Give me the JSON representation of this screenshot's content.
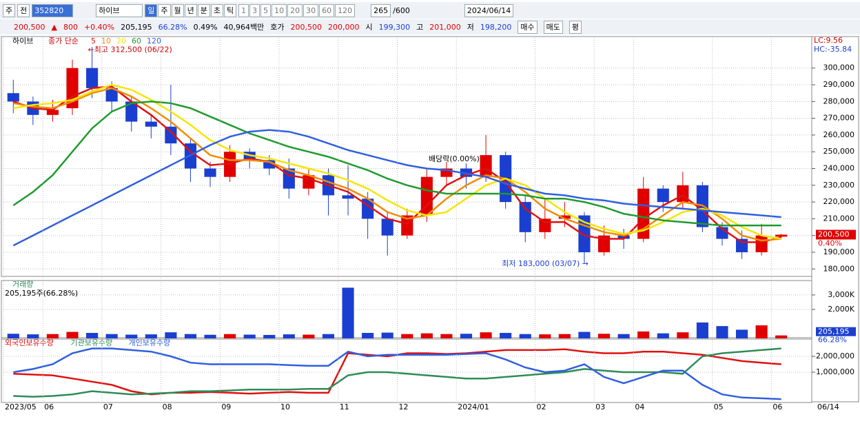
{
  "toolbar": {
    "period": "주",
    "prev": "전",
    "code": "352820",
    "name": "하이브",
    "intervals": [
      "일",
      "주",
      "월",
      "년",
      "분",
      "초",
      "틱"
    ],
    "minutes": [
      "1",
      "3",
      "5",
      "10",
      "20",
      "30",
      "60",
      "120"
    ],
    "count": "265",
    "max_count": "/600",
    "date": "2024/06/14"
  },
  "info_bar": {
    "price": "200,500",
    "arrow": "▲",
    "change": "800",
    "change_pct": "+0.40%",
    "volume": "205,195",
    "volume_ratio": "66.28%",
    "turnover": "0.49%",
    "amount": "40,964백만",
    "quote_label": "호가",
    "ask": "200,500",
    "bid": "200,000",
    "open_label": "시",
    "open": "199,300",
    "high_label": "고",
    "high": "201,000",
    "low_label": "저",
    "low": "198,200",
    "buy": "매수",
    "sell": "매도",
    "avg": "평"
  },
  "chart_data": [
    {
      "type": "candlestick",
      "title": "하이브",
      "legend_prefix": "종가 단순",
      "up_color": "#e00000",
      "down_color": "#1a3fd0",
      "open": [
        285000,
        280000,
        272000,
        276000,
        300000,
        288000,
        280000,
        268000,
        265000,
        255000,
        240000,
        235000,
        250000,
        245000,
        240000,
        228000,
        236000,
        224000,
        222000,
        210000,
        200000,
        212000,
        235000,
        240000,
        235000,
        248000,
        220000,
        202000,
        210000,
        212000,
        190000,
        200000,
        198000,
        228000,
        220000,
        230000,
        205000,
        198000,
        190000,
        199300
      ],
      "high": [
        293000,
        283000,
        281000,
        305000,
        312500,
        292000,
        283000,
        272000,
        290000,
        258000,
        244000,
        254000,
        252000,
        248000,
        246000,
        240000,
        240000,
        242000,
        226000,
        214000,
        216000,
        240000,
        244000,
        243000,
        260000,
        250000,
        224000,
        222000,
        220000,
        214000,
        206000,
        204000,
        235000,
        230000,
        238000,
        232000,
        208000,
        203000,
        207000,
        201000
      ],
      "low": [
        273000,
        266000,
        268000,
        272000,
        282000,
        274000,
        262000,
        258000,
        248000,
        232000,
        229000,
        232000,
        240000,
        236000,
        222000,
        224000,
        212000,
        212000,
        198000,
        188000,
        198000,
        208000,
        230000,
        228000,
        232000,
        216000,
        196000,
        198000,
        205000,
        183000,
        188000,
        192000,
        196000,
        214000,
        216000,
        202000,
        194000,
        186000,
        188000,
        198200
      ],
      "close": [
        280000,
        272000,
        275000,
        300000,
        288000,
        280000,
        268000,
        265000,
        255000,
        240000,
        235000,
        250000,
        245000,
        240000,
        228000,
        236000,
        224000,
        222000,
        210000,
        200000,
        212000,
        235000,
        240000,
        235000,
        248000,
        220000,
        202000,
        210000,
        212000,
        190000,
        200000,
        198000,
        228000,
        220000,
        230000,
        205000,
        198000,
        190000,
        200000,
        200500
      ],
      "series": [
        {
          "name": "5",
          "color": "#e01010",
          "values": [
            280000,
            276000,
            275000,
            283000,
            288000,
            289000,
            280000,
            272000,
            262000,
            250000,
            242000,
            243000,
            246000,
            244000,
            236000,
            234000,
            230000,
            226000,
            218000,
            210000,
            207000,
            218000,
            230000,
            236000,
            240000,
            232000,
            216000,
            208000,
            208000,
            200000,
            198000,
            198000,
            210000,
            218000,
            224000,
            215000,
            204000,
            196000,
            196000,
            199000
          ]
        },
        {
          "name": "10",
          "color": "#f08c00",
          "values": [
            279000,
            277000,
            276000,
            280000,
            285000,
            288000,
            283000,
            276000,
            268000,
            258000,
            248000,
            245000,
            245000,
            244000,
            239000,
            236000,
            232000,
            228000,
            222000,
            214000,
            210000,
            212000,
            222000,
            230000,
            236000,
            234000,
            226000,
            216000,
            210000,
            206000,
            202000,
            200000,
            204000,
            212000,
            220000,
            218000,
            210000,
            200000,
            197000,
            198000
          ]
        },
        {
          "name": "20",
          "color": "#f5e600",
          "values": [
            276000,
            278000,
            279000,
            281000,
            286000,
            290000,
            287000,
            281000,
            274000,
            266000,
            257000,
            251000,
            248000,
            246000,
            243000,
            240000,
            237000,
            233000,
            228000,
            221000,
            215000,
            212000,
            214000,
            222000,
            230000,
            234000,
            230000,
            222000,
            214000,
            208000,
            204000,
            201000,
            203000,
            208000,
            214000,
            216000,
            212000,
            205000,
            200000,
            198000
          ]
        },
        {
          "name": "60",
          "color": "#1e9a2e",
          "values": [
            218000,
            226000,
            236000,
            250000,
            264000,
            274000,
            279000,
            280000,
            279000,
            276000,
            271000,
            266000,
            261000,
            257000,
            253000,
            250000,
            247000,
            243000,
            239000,
            234000,
            230000,
            227000,
            225000,
            225000,
            225000,
            225000,
            224000,
            222000,
            222000,
            220000,
            217000,
            213000,
            211000,
            209000,
            208000,
            207000,
            206000,
            206000,
            206000,
            206000
          ]
        },
        {
          "name": "120",
          "color": "#2f5fe0",
          "values": [
            194000,
            200000,
            206000,
            212000,
            218000,
            224000,
            230000,
            236000,
            242000,
            248000,
            254000,
            259000,
            262000,
            263000,
            262000,
            259000,
            255000,
            251000,
            248000,
            245000,
            242000,
            240000,
            239000,
            237000,
            235000,
            231000,
            228000,
            225000,
            224000,
            222000,
            221000,
            219000,
            218000,
            217000,
            216000,
            215000,
            214000,
            213000,
            212000,
            211000
          ]
        }
      ],
      "ylim": [
        176000,
        318000
      ],
      "yticks": [
        {
          "value": 180000,
          "label": "180,000"
        },
        {
          "value": 190000,
          "label": "190,000"
        },
        {
          "value": 200000,
          "label": "200,000"
        },
        {
          "value": 210000,
          "label": "210,000"
        },
        {
          "value": 220000,
          "label": "220,000"
        },
        {
          "value": 230000,
          "label": "230,000"
        },
        {
          "value": 240000,
          "label": "240,000"
        },
        {
          "value": 250000,
          "label": "250,000"
        },
        {
          "value": 260000,
          "label": "260,000"
        },
        {
          "value": 270000,
          "label": "270,000"
        },
        {
          "value": 280000,
          "label": "280,000"
        },
        {
          "value": 290000,
          "label": "290,000"
        },
        {
          "value": 300000,
          "label": "300,000"
        }
      ],
      "grid": true,
      "annotations": [
        "←최고 312,500 (06/22)",
        "배당락(0.00%)",
        "최저 183,000 (03/07) →"
      ],
      "lc": "LC:9.56",
      "hc": "HC:-35.84",
      "last_price": {
        "value": 200500,
        "label": "200,500"
      },
      "last_change": "0.40%"
    },
    {
      "type": "bar",
      "title": "거래량",
      "subtitle": "205,195주(66.28%)",
      "up_color": "#e00000",
      "down_color": "#1a3fd0",
      "values": [
        320000,
        280000,
        300000,
        450000,
        380000,
        300000,
        260000,
        280000,
        420000,
        300000,
        250000,
        300000,
        260000,
        240000,
        280000,
        260000,
        300000,
        3500000,
        380000,
        400000,
        300000,
        350000,
        300000,
        320000,
        420000,
        380000,
        300000,
        280000,
        300000,
        450000,
        320000,
        300000,
        480000,
        350000,
        420000,
        1100000,
        850000,
        600000,
        900000,
        205195
      ],
      "ylim": [
        0,
        3900000
      ],
      "yticks": [
        {
          "value": 2000000,
          "label": "2,000K"
        },
        {
          "value": 3000000,
          "label": "3,000K"
        }
      ],
      "grid": true,
      "last_value": {
        "value": 205195,
        "label": "205,195"
      },
      "last_ratio": "66.28%"
    },
    {
      "type": "line",
      "categories": [
        "2023/05",
        null,
        "06",
        null,
        null,
        "07",
        null,
        null,
        "08",
        null,
        null,
        "09",
        null,
        null,
        "10",
        null,
        null,
        "11",
        null,
        null,
        "12",
        null,
        null,
        "2024/01",
        null,
        null,
        null,
        "02",
        null,
        null,
        "03",
        null,
        "04",
        null,
        null,
        null,
        "05",
        null,
        null,
        "06"
      ],
      "series": [
        {
          "name": "외국인보유수량",
          "color": "#e01010",
          "values": [
            900000,
            850000,
            800000,
            600000,
            400000,
            200000,
            -200000,
            -400000,
            -300000,
            -300000,
            -250000,
            -300000,
            -350000,
            -300000,
            -250000,
            -300000,
            -300000,
            2200000,
            2100000,
            2000000,
            2200000,
            2200000,
            2150000,
            2200000,
            2300000,
            2400000,
            2400000,
            2400000,
            2450000,
            2300000,
            2200000,
            2200000,
            2300000,
            2300000,
            2200000,
            2100000,
            1900000,
            1700000,
            1600000,
            1500000
          ]
        },
        {
          "name": "기관보유수량",
          "color": "#2e8b57",
          "values": [
            -500000,
            -550000,
            -500000,
            -400000,
            -200000,
            -300000,
            -400000,
            -350000,
            -300000,
            -200000,
            -200000,
            -150000,
            -100000,
            -100000,
            -100000,
            -50000,
            -50000,
            800000,
            1000000,
            1000000,
            900000,
            800000,
            700000,
            600000,
            600000,
            700000,
            800000,
            900000,
            1000000,
            1200000,
            1100000,
            1000000,
            1000000,
            1000000,
            900000,
            2000000,
            2200000,
            2300000,
            2400000,
            2500000
          ]
        },
        {
          "name": "개인보유수량",
          "color": "#2f5fe0",
          "values": [
            1000000,
            1200000,
            1500000,
            2200000,
            2500000,
            2500000,
            2400000,
            2300000,
            2000000,
            1600000,
            1500000,
            1500000,
            1500000,
            1500000,
            1450000,
            1400000,
            1400000,
            2300000,
            2000000,
            2100000,
            2100000,
            2100000,
            2100000,
            2150000,
            2200000,
            1800000,
            1300000,
            1000000,
            1100000,
            1500000,
            700000,
            300000,
            700000,
            1100000,
            1100000,
            200000,
            -400000,
            -600000,
            -650000,
            -700000
          ]
        }
      ],
      "ylim": [
        -870000,
        3090000
      ],
      "yticks": [
        {
          "value": 1000000,
          "label": "1,000,000"
        },
        {
          "value": 2000000,
          "label": "2,000,000"
        }
      ],
      "grid": true,
      "end_label": "06/14"
    }
  ]
}
